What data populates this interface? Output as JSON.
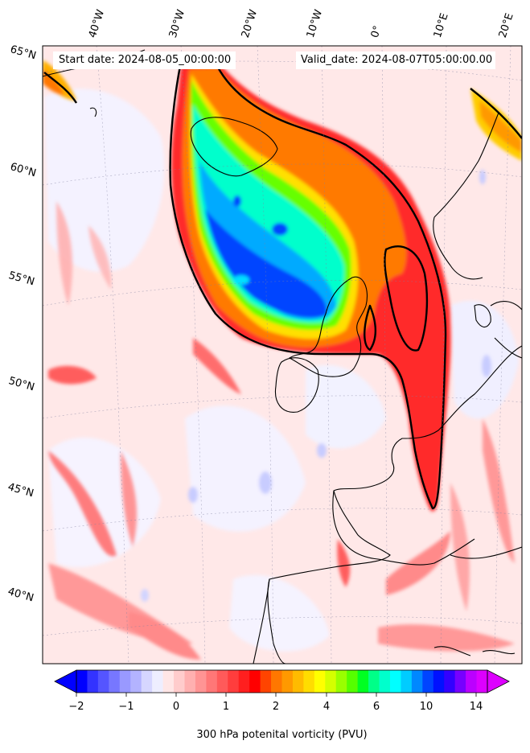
{
  "header": {
    "start_date": "Start date: 2024-08-05_00:00:00",
    "valid_date": "Valid_date: 2024-08-07T05:00:00.00"
  },
  "axes": {
    "longitude_labels": [
      "40°W",
      "30°W",
      "20°W",
      "10°W",
      "0°",
      "10°E",
      "20°E"
    ],
    "latitude_labels": [
      "65°N",
      "60°N",
      "55°N",
      "50°N",
      "45°N",
      "40°N"
    ]
  },
  "colorbar": {
    "title": "300 hPa potenital vorticity (PVU)",
    "tick_labels": [
      "−2",
      "−1",
      "0",
      "1",
      "2",
      "4",
      "6",
      "10",
      "14"
    ],
    "colors": [
      "#0000ff",
      "#3333ff",
      "#5555ff",
      "#7777ff",
      "#9999ff",
      "#b3b3ff",
      "#d6d6ff",
      "#eeeeff",
      "#ffe6e6",
      "#ffcccc",
      "#ffb0b0",
      "#ff9494",
      "#ff7777",
      "#ff5a5a",
      "#ff3d3d",
      "#ff1f1f",
      "#ff0000",
      "#ff4400",
      "#ff7700",
      "#ff9900",
      "#ffbb00",
      "#ffdd00",
      "#ffff00",
      "#d4ff00",
      "#99ff00",
      "#55ff00",
      "#00ff22",
      "#00ff88",
      "#00ffcc",
      "#00ffff",
      "#00ccff",
      "#0088ff",
      "#0044ff",
      "#0011ff",
      "#3300ff",
      "#7700ff",
      "#bb00ff",
      "#dd00ff"
    ],
    "extend": "both"
  },
  "map": {
    "projection": "polar stereographic, North Atlantic and Western Europe",
    "field": "300 hPa potential vorticity",
    "contour": "black line at 2 PVU",
    "background_color": "#ffe6e6",
    "trough_core_color": "#0044ff"
  }
}
